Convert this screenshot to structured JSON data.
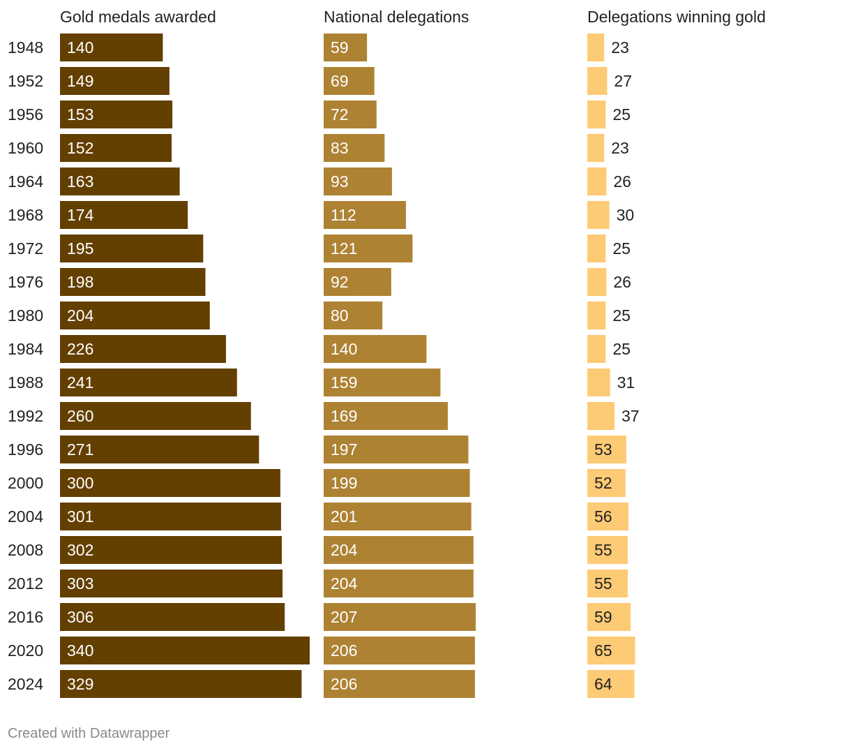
{
  "chart_data": {
    "type": "bar",
    "orientation": "horizontal",
    "categories": [
      "1948",
      "1952",
      "1956",
      "1960",
      "1964",
      "1968",
      "1972",
      "1976",
      "1980",
      "1984",
      "1988",
      "1992",
      "1996",
      "2000",
      "2004",
      "2008",
      "2012",
      "2016",
      "2020",
      "2024"
    ],
    "series": [
      {
        "name": "Gold medals awarded",
        "color": "#633f00",
        "label_color": "#ffffff",
        "values": [
          140,
          149,
          153,
          152,
          163,
          174,
          195,
          198,
          204,
          226,
          241,
          260,
          271,
          300,
          301,
          302,
          303,
          306,
          340,
          329
        ]
      },
      {
        "name": "National delegations",
        "color": "#ae8233",
        "label_color": "#ffffff",
        "values": [
          59,
          69,
          72,
          83,
          93,
          112,
          121,
          92,
          80,
          140,
          159,
          169,
          197,
          199,
          201,
          204,
          204,
          207,
          206,
          206
        ]
      },
      {
        "name": "Delegations winning gold",
        "color": "#fdca75",
        "label_color": "#222222",
        "values": [
          23,
          27,
          25,
          23,
          26,
          30,
          25,
          26,
          25,
          25,
          31,
          37,
          53,
          52,
          56,
          55,
          55,
          59,
          65,
          64
        ]
      }
    ],
    "xlim": [
      0,
      340
    ],
    "grid": false,
    "legend": "none"
  },
  "footer": {
    "credit": "Created with Datawrapper"
  }
}
